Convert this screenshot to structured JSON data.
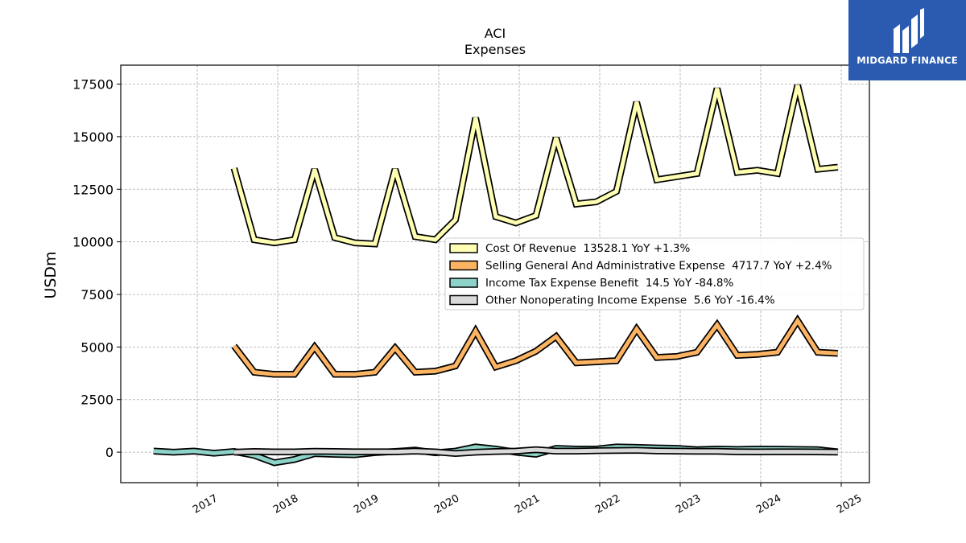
{
  "chart_data": {
    "type": "line",
    "title": "ACI",
    "subtitle": "Expenses",
    "ylabel": "USDm",
    "xlabel": "",
    "ylim": [
      -1450,
      18400
    ],
    "xlim": [
      2016.05,
      2025.35
    ],
    "yticks": [
      0,
      2500,
      5000,
      7500,
      10000,
      12500,
      15000,
      17500
    ],
    "xticks": [
      "2017",
      "2018",
      "2019",
      "2020",
      "2021",
      "2022",
      "2023",
      "2024",
      "2025"
    ],
    "grid": true,
    "legend_position": "center-right",
    "series": [
      {
        "name": "Cost Of Revenue",
        "legend": "Cost Of Revenue  13528.1 YoY +1.3%",
        "color": "#ffffb3",
        "x": [
          "2017-06",
          "2017-09",
          "2017-12",
          "2018-03",
          "2018-06",
          "2018-09",
          "2018-12",
          "2019-03",
          "2019-06",
          "2019-09",
          "2019-12",
          "2020-03",
          "2020-06",
          "2020-09",
          "2020-12",
          "2021-03",
          "2021-06",
          "2021-09",
          "2021-12",
          "2022-03",
          "2022-06",
          "2022-09",
          "2022-12",
          "2023-03",
          "2023-06",
          "2023-09",
          "2023-12",
          "2024-03",
          "2024-06",
          "2024-09",
          "2024-12"
        ],
        "values": [
          13500,
          10100,
          9950,
          10100,
          13450,
          10200,
          9950,
          9900,
          13450,
          10250,
          10100,
          11050,
          15900,
          11200,
          10900,
          11250,
          14950,
          11800,
          11900,
          12400,
          16650,
          12950,
          13100,
          13250,
          17300,
          13300,
          13400,
          13250,
          17450,
          13450,
          13550
        ]
      },
      {
        "name": "Selling General And Administrative Expense",
        "legend": "Selling General And Administrative Expense  4717.7 YoY +2.4%",
        "color": "#fdb462",
        "x": [
          "2017-06",
          "2017-09",
          "2017-12",
          "2018-03",
          "2018-06",
          "2018-09",
          "2018-12",
          "2019-03",
          "2019-06",
          "2019-09",
          "2019-12",
          "2020-03",
          "2020-06",
          "2020-09",
          "2020-12",
          "2021-03",
          "2021-06",
          "2021-09",
          "2021-12",
          "2022-03",
          "2022-06",
          "2022-09",
          "2022-12",
          "2023-03",
          "2023-06",
          "2023-09",
          "2023-12",
          "2024-03",
          "2024-06",
          "2024-09",
          "2024-12"
        ],
        "values": [
          5050,
          3800,
          3700,
          3700,
          5000,
          3700,
          3700,
          3800,
          4950,
          3800,
          3850,
          4100,
          5750,
          4050,
          4350,
          4800,
          5500,
          4250,
          4300,
          4350,
          5850,
          4500,
          4550,
          4750,
          6050,
          4600,
          4650,
          4750,
          6250,
          4750,
          4700
        ]
      },
      {
        "name": "Income Tax Expense Benefit",
        "legend": "Income Tax Expense Benefit  14.5 YoY -84.8%",
        "color": "#8dd3c7",
        "x": [
          "2016-06",
          "2016-09",
          "2016-12",
          "2017-03",
          "2017-06",
          "2017-09",
          "2017-12",
          "2018-03",
          "2018-06",
          "2018-09",
          "2018-12",
          "2019-03",
          "2019-06",
          "2019-09",
          "2019-12",
          "2020-03",
          "2020-06",
          "2020-09",
          "2020-12",
          "2021-03",
          "2021-06",
          "2021-09",
          "2021-12",
          "2022-03",
          "2022-06",
          "2022-09",
          "2022-12",
          "2023-03",
          "2023-06",
          "2023-09",
          "2023-12",
          "2024-03",
          "2024-06",
          "2024-09",
          "2024-12"
        ],
        "values": [
          50,
          0,
          50,
          -50,
          30,
          -150,
          -500,
          -350,
          -70,
          -100,
          -120,
          -20,
          30,
          100,
          -30,
          50,
          250,
          150,
          0,
          -100,
          180,
          150,
          150,
          250,
          230,
          200,
          180,
          120,
          150,
          130,
          150,
          140,
          130,
          120,
          15
        ]
      },
      {
        "name": "Other Nonoperating Income Expense",
        "legend": "Other Nonoperating Income Expense  5.6 YoY -16.4%",
        "color": "#d9d9d9",
        "x": [
          "2017-06",
          "2017-09",
          "2017-12",
          "2018-03",
          "2018-06",
          "2018-09",
          "2018-12",
          "2019-03",
          "2019-06",
          "2019-09",
          "2019-12",
          "2020-03",
          "2020-06",
          "2020-09",
          "2020-12",
          "2021-03",
          "2021-06",
          "2021-09",
          "2021-12",
          "2022-03",
          "2022-06",
          "2022-09",
          "2022-12",
          "2023-03",
          "2023-06",
          "2023-09",
          "2023-12",
          "2024-03",
          "2024-06",
          "2024-09",
          "2024-12"
        ],
        "values": [
          0,
          30,
          10,
          10,
          40,
          30,
          20,
          20,
          20,
          50,
          10,
          -60,
          0,
          30,
          50,
          120,
          50,
          50,
          70,
          80,
          90,
          60,
          50,
          40,
          40,
          20,
          10,
          20,
          20,
          10,
          5
        ]
      }
    ]
  },
  "logo": {
    "brand_text": "MIDGARD FINANCE"
  }
}
